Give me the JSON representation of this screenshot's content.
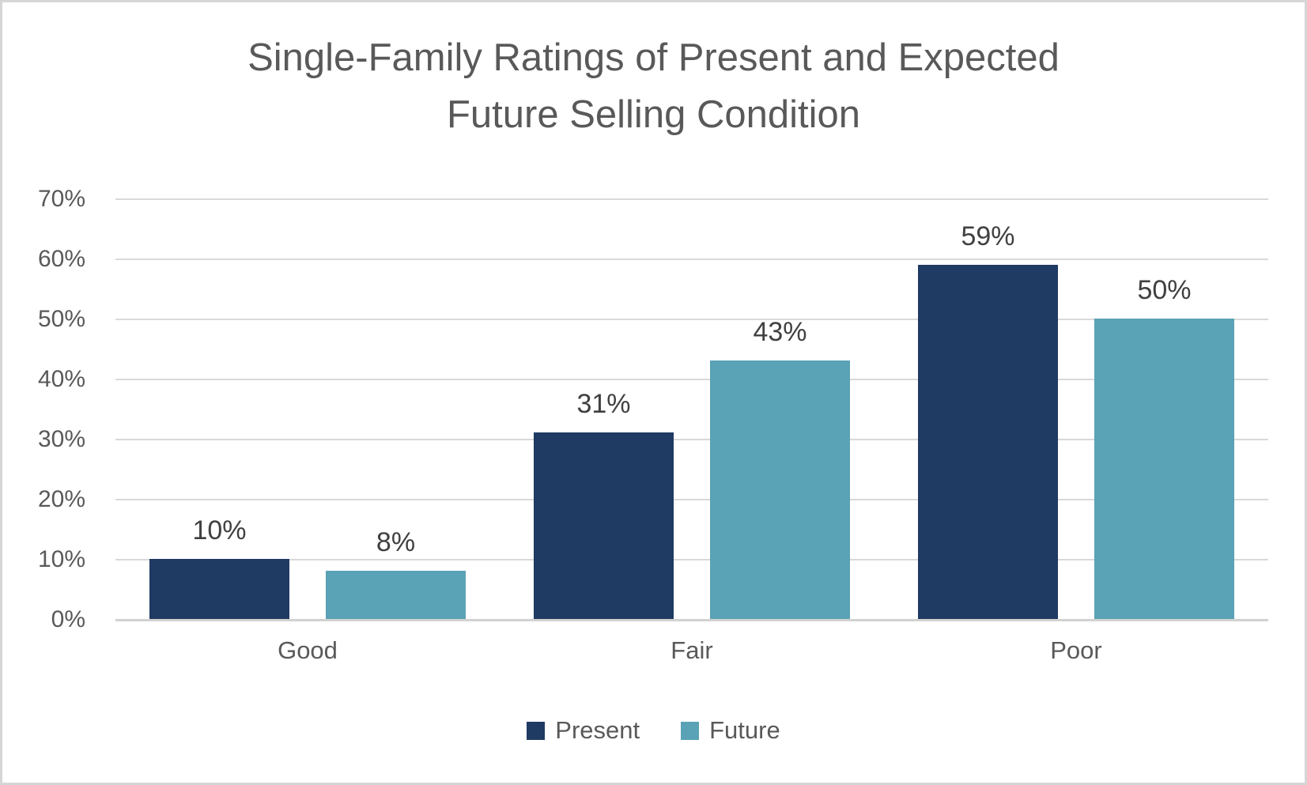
{
  "chart_data": {
    "type": "bar",
    "title": "Single-Family Ratings of Present and Expected Future Selling Condition",
    "categories": [
      "Good",
      "Fair",
      "Poor"
    ],
    "series": [
      {
        "name": "Present",
        "color": "#1F3A63",
        "values": [
          10,
          31,
          59
        ],
        "labels": [
          "10%",
          "31%",
          "59%"
        ]
      },
      {
        "name": "Future",
        "color": "#5AA2B5",
        "values": [
          8,
          43,
          50
        ],
        "labels": [
          "8%",
          "43%",
          "50%"
        ]
      }
    ],
    "ylim": [
      0,
      70
    ],
    "y_ticks": [
      {
        "value": 70,
        "label": "70%"
      },
      {
        "value": 60,
        "label": "60%"
      },
      {
        "value": 50,
        "label": "50%"
      },
      {
        "value": 40,
        "label": "40%"
      },
      {
        "value": 30,
        "label": "30%"
      },
      {
        "value": 20,
        "label": "20%"
      },
      {
        "value": 10,
        "label": "10%"
      },
      {
        "value": 0,
        "label": "0%"
      }
    ],
    "grid": true,
    "legend_position": "bottom",
    "xlabel": "",
    "ylabel": ""
  },
  "style": {
    "title_color": "#595959",
    "axis_text_color": "#595959",
    "data_label_color": "#404040",
    "gridline_color": "#D9D9D9",
    "frame_border_color": "#D6D6D6",
    "background": "#FFFFFF"
  }
}
